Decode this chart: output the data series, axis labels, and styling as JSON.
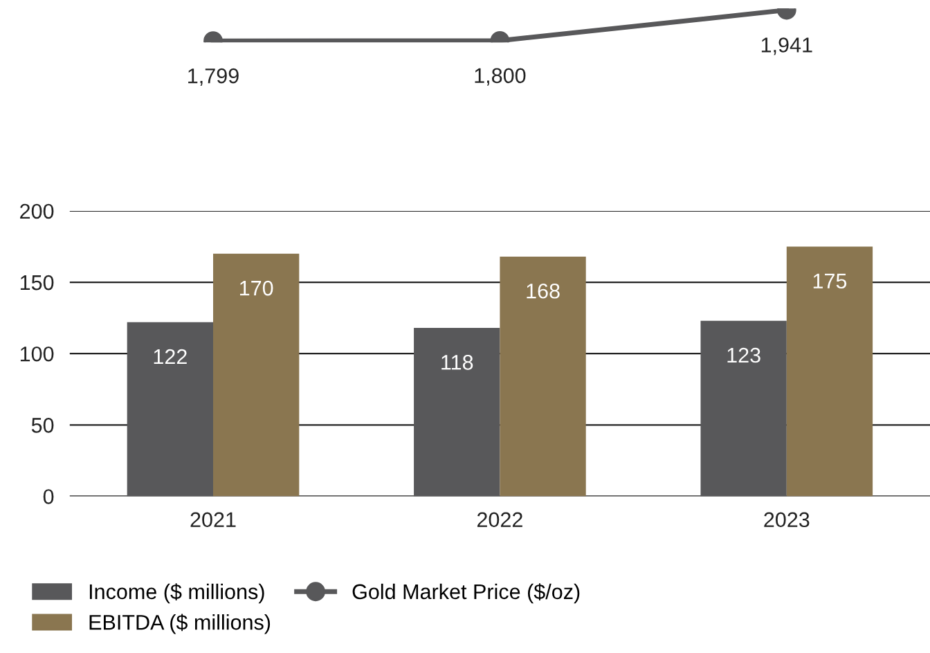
{
  "chart_data": [
    {
      "type": "line",
      "categories": [
        "2021",
        "2022",
        "2023"
      ],
      "tick_labels": false,
      "series": [
        {
          "name": "Gold Market Price ($/oz)",
          "color": "#58585a",
          "values": [
            1799,
            1800,
            1941
          ],
          "value_labels": [
            "1,799",
            "1,800",
            "1,941"
          ]
        }
      ],
      "marker": "circle",
      "line_style": "solid",
      "grid": false
    },
    {
      "type": "bar",
      "categories": [
        "2021",
        "2022",
        "2023"
      ],
      "series": [
        {
          "name": "Income ($ millions)",
          "color": "#58585a",
          "values": [
            122,
            118,
            123
          ]
        },
        {
          "name": "EBITDA ($ millions)",
          "color": "#8a7650",
          "values": [
            170,
            168,
            175
          ]
        }
      ],
      "ylim": [
        0,
        200
      ],
      "yticks": [
        0,
        50,
        100,
        150,
        200
      ],
      "grid": "y",
      "data_labels": true,
      "legend": "bottom left"
    }
  ]
}
